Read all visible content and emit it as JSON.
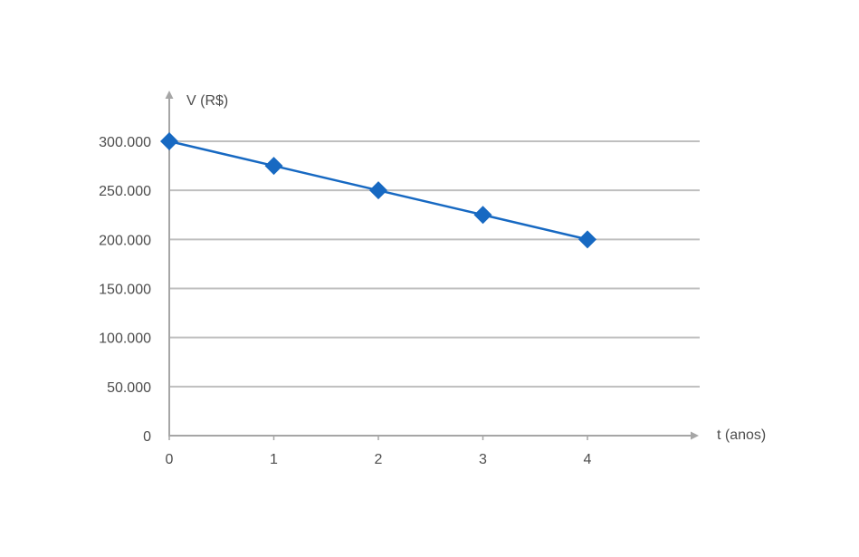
{
  "chart_data": {
    "type": "line",
    "x": [
      0,
      1,
      2,
      3,
      4
    ],
    "series": [
      {
        "values": [
          300000,
          275000,
          250000,
          225000,
          200000
        ]
      }
    ],
    "xlabel": "t (anos)",
    "ylabel": "V (R$)",
    "x_ticks": [
      {
        "value": 0,
        "label": "0"
      },
      {
        "value": 1,
        "label": "1"
      },
      {
        "value": 2,
        "label": "2"
      },
      {
        "value": 3,
        "label": "3"
      },
      {
        "value": 4,
        "label": "4"
      }
    ],
    "y_ticks": [
      {
        "value": 0,
        "label": "0"
      },
      {
        "value": 50000,
        "label": "50.000"
      },
      {
        "value": 100000,
        "label": "100.000"
      },
      {
        "value": 150000,
        "label": "150.000"
      },
      {
        "value": 200000,
        "label": "200.000"
      },
      {
        "value": 250000,
        "label": "250.000"
      },
      {
        "value": 300000,
        "label": "300.000"
      }
    ],
    "grid": true,
    "marker": "diamond",
    "colors": {
      "series": "#1769c2",
      "grid": "#bfbfbf",
      "axis": "#a6a6a6",
      "text": "#4d4d4d"
    }
  }
}
